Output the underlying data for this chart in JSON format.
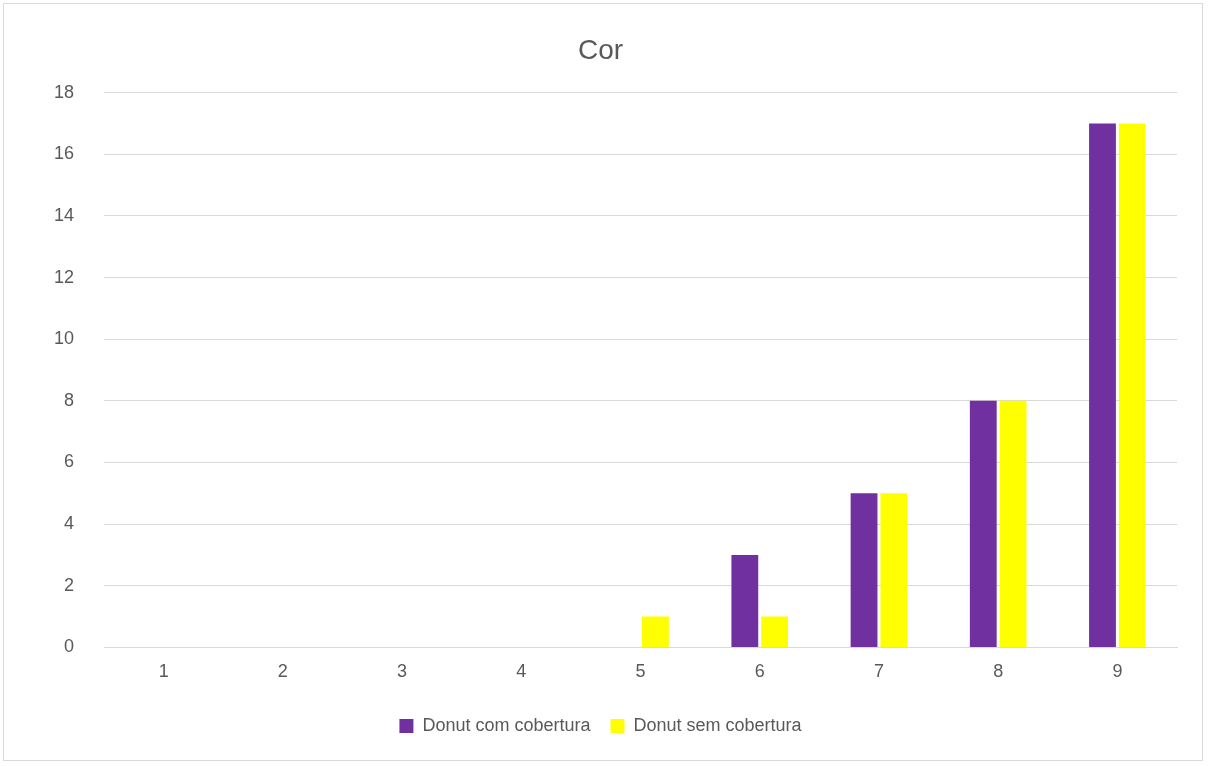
{
  "chart_data": {
    "type": "bar",
    "title": "Cor",
    "categories": [
      "1",
      "2",
      "3",
      "4",
      "5",
      "6",
      "7",
      "8",
      "9"
    ],
    "series": [
      {
        "name": "Donut com cobertura",
        "color": "#7030a0",
        "values": [
          0,
          0,
          0,
          0,
          0,
          3,
          5,
          8,
          17
        ]
      },
      {
        "name": "Donut sem cobertura",
        "color": "#ffff00",
        "values": [
          0,
          0,
          0,
          0,
          1,
          1,
          5,
          8,
          17
        ]
      }
    ],
    "ylim": [
      0,
      18
    ],
    "yticks": [
      0,
      2,
      4,
      6,
      8,
      10,
      12,
      14,
      16,
      18
    ],
    "grid": "y",
    "legend": "bottom"
  }
}
